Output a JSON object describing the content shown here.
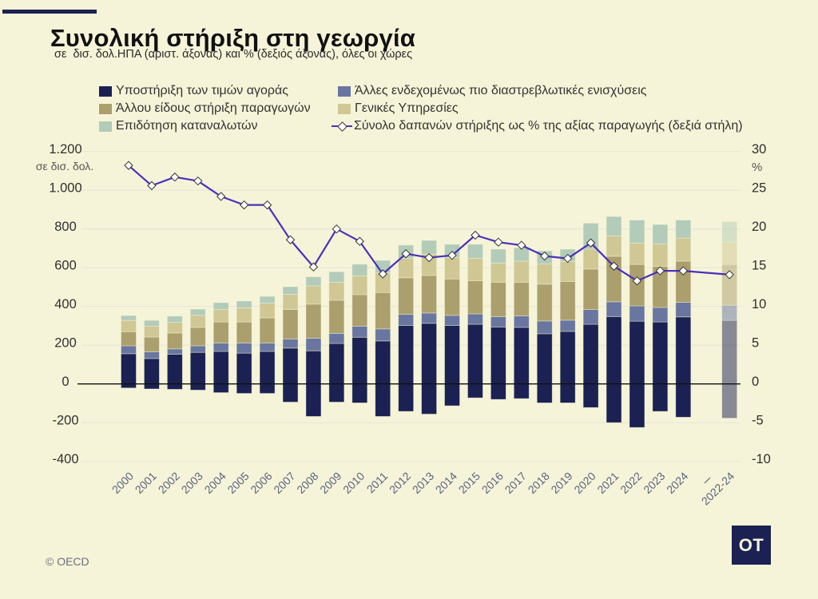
{
  "chart_data": {
    "type": "bar",
    "stacked": true,
    "title": "Συνολική στήριξη στη γεωργία",
    "subtitle": "σε  δισ. δολ.ΗΠΑ (αριστ. άξονας) και % (δεξιός άξονας), όλες οι χώρες",
    "xlabel": "",
    "ylabel": "σε δισ. δολ.",
    "y2label": "%",
    "ylim": [
      -400,
      1200
    ],
    "y2lim": [
      -10,
      30
    ],
    "yticks": [
      1200,
      1000,
      800,
      600,
      400,
      200,
      0,
      -200,
      -400
    ],
    "ytick_labels": [
      "1.200",
      "1.000",
      "800",
      "600",
      "400",
      "200",
      "0",
      "-200",
      "-400"
    ],
    "y2ticks": [
      30,
      25,
      20,
      15,
      10,
      5,
      0,
      -5,
      -10
    ],
    "y2tick_labels": [
      "30",
      "25",
      "20",
      "15",
      "10",
      "5",
      "0",
      "-5",
      "-10"
    ],
    "grid": true,
    "legend_position": "top",
    "categories": [
      "2000",
      "2001",
      "2002",
      "2003",
      "2004",
      "2005",
      "2006",
      "2007",
      "2008",
      "2009",
      "2010",
      "2011",
      "2012",
      "2013",
      "2014",
      "2015",
      "2016",
      "2017",
      "2018",
      "2019",
      "2020",
      "2021",
      "2022",
      "2023",
      "2024",
      "2022-24"
    ],
    "average_category": "2022-24",
    "series": [
      {
        "name": "Υποστήριξη των τιμών αγοράς",
        "type": "bar",
        "axis": "left",
        "color": "#1b2152",
        "values": [
          156,
          131,
          153,
          163,
          168,
          159,
          168,
          185,
          171,
          209,
          241,
          222,
          302,
          313,
          302,
          308,
          294,
          292,
          259,
          271,
          308,
          348,
          324,
          320,
          346,
          328
        ],
        "negative_values": [
          -21,
          -26,
          -28,
          -32,
          -45,
          -49,
          -49,
          -94,
          -168,
          -94,
          -98,
          -168,
          -142,
          -156,
          -113,
          -72,
          -80,
          -76,
          -98,
          -98,
          -122,
          -200,
          -225,
          -142,
          -172,
          -177
        ]
      },
      {
        "name": "Άλλες ενδεχομένως πιο διαστρεβλωτικές ενισχύσεις",
        "type": "bar",
        "axis": "left",
        "color": "#69769f",
        "values": [
          41,
          35,
          28,
          34,
          43,
          52,
          43,
          47,
          65,
          52,
          57,
          62,
          58,
          53,
          52,
          54,
          53,
          59,
          66,
          58,
          76,
          76,
          79,
          75,
          75,
          78
        ]
      },
      {
        "name": "Άλλου είδους στήριξη παραγωγών",
        "type": "bar",
        "axis": "left",
        "color": "#ab9f6d",
        "values": [
          73,
          76,
          82,
          95,
          109,
          109,
          130,
          152,
          176,
          171,
          163,
          188,
          188,
          194,
          188,
          171,
          178,
          174,
          190,
          200,
          209,
          235,
          214,
          212,
          213,
          211
        ]
      },
      {
        "name": "Γενικές Υπηρεσίες",
        "type": "bar",
        "axis": "left",
        "color": "#cfc794",
        "values": [
          58,
          56,
          55,
          62,
          64,
          73,
          76,
          79,
          94,
          93,
          97,
          102,
          100,
          111,
          110,
          115,
          99,
          109,
          104,
          103,
          103,
          105,
          110,
          116,
          119,
          116
        ]
      },
      {
        "name": "Επιδότηση καταναλωτών",
        "type": "bar",
        "axis": "left",
        "color": "#b3cbb9",
        "values": [
          25,
          30,
          32,
          32,
          36,
          35,
          35,
          39,
          47,
          54,
          60,
          64,
          69,
          70,
          69,
          73,
          72,
          69,
          68,
          64,
          134,
          100,
          119,
          100,
          93,
          105
        ]
      },
      {
        "name": "Σύνολο δαπανών στήριξης ως % της αξίας παραγωγής (δεξιά στήλη)",
        "type": "line",
        "axis": "right",
        "color": "#4a30bd",
        "marker": "diamond",
        "values": [
          28.2,
          25.6,
          26.7,
          26.2,
          24.2,
          23.1,
          23.1,
          18.6,
          15.1,
          20.0,
          18.4,
          14.2,
          16.8,
          16.3,
          16.6,
          19.2,
          18.3,
          17.9,
          16.5,
          16.2,
          18.2,
          15.2,
          13.3,
          14.6,
          14.6,
          14.1
        ]
      }
    ]
  },
  "footer": {
    "source": "© OECD"
  },
  "logo": {
    "text": "OT"
  }
}
